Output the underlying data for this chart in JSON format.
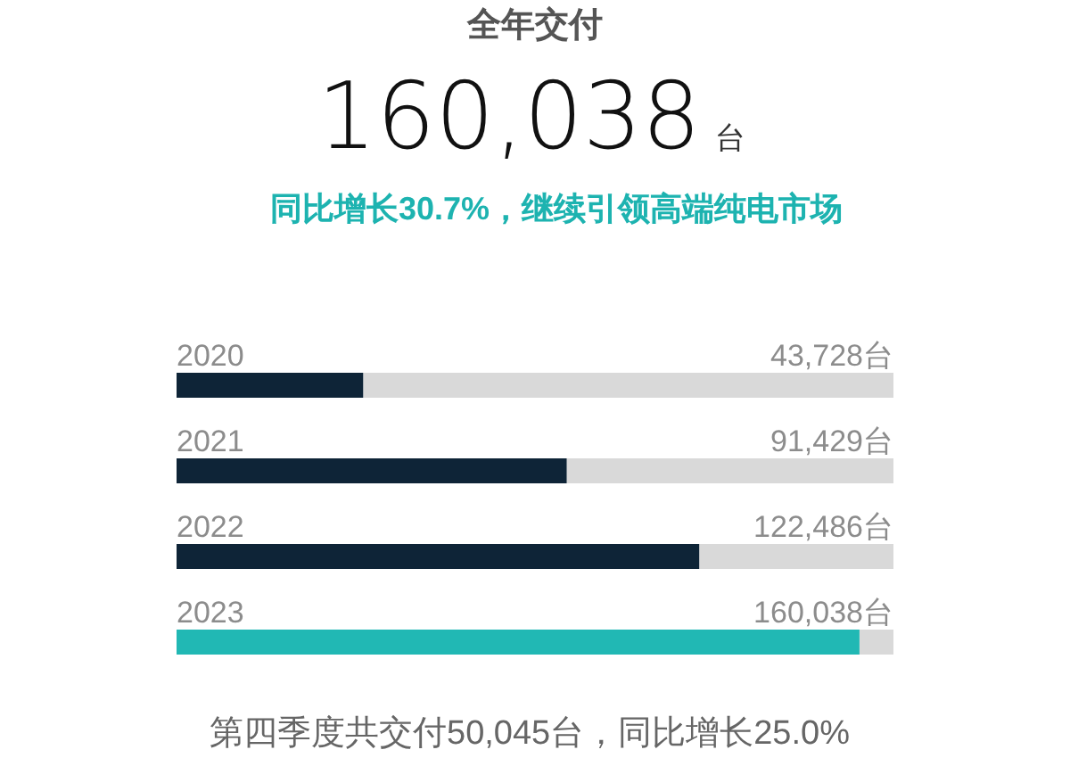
{
  "chart_data": {
    "type": "bar",
    "orientation": "horizontal",
    "title": "全年交付",
    "subtitle": "同比增长30.7%，继续引领高端纯电市场",
    "annotations": [
      "160,038台",
      "第四季度共交付50,045台，同比增长25.0%"
    ],
    "categories": [
      "2020",
      "2021",
      "2022",
      "2023"
    ],
    "values": [
      43728,
      91429,
      122486,
      160038
    ],
    "colors": [
      "#0e2437",
      "#0e2437",
      "#0e2437",
      "#21b8b4"
    ],
    "value_labels": [
      "43,728台",
      "91,429台",
      "122,486台",
      "160,038台"
    ],
    "xlim": [
      0,
      168000
    ],
    "tick_labels": "y"
  }
}
